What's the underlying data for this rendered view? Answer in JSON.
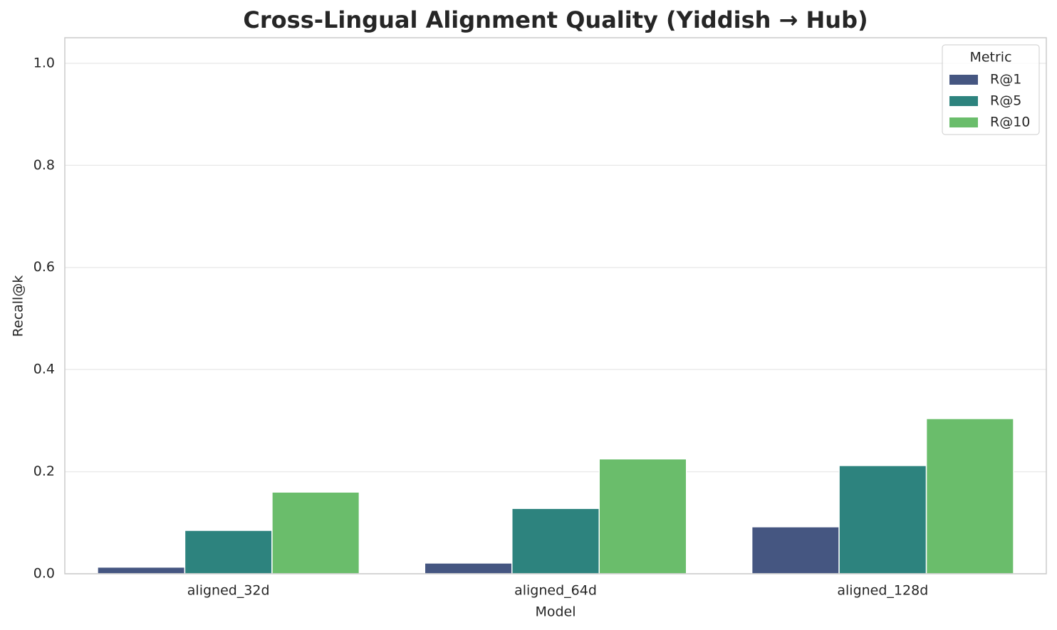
{
  "chart_data": {
    "type": "bar",
    "title": "Cross-Lingual Alignment Quality (Yiddish → Hub)",
    "x_label": "Model",
    "y_label": "Recall@k",
    "categories": [
      "aligned_32d",
      "aligned_64d",
      "aligned_128d"
    ],
    "series": [
      {
        "name": "R@1",
        "color": "#455681",
        "values": [
          0.013,
          0.021,
          0.092
        ]
      },
      {
        "name": "R@5",
        "color": "#2d837e",
        "values": [
          0.085,
          0.128,
          0.212
        ]
      },
      {
        "name": "R@10",
        "color": "#6abd6b",
        "values": [
          0.16,
          0.225,
          0.304
        ]
      }
    ],
    "ylim": [
      0,
      1.05
    ],
    "yticks": [
      {
        "value": 0,
        "label": "0.0"
      },
      0.2,
      0.4,
      0.6,
      0.8,
      {
        "value": 1,
        "label": "1.0"
      }
    ],
    "grid": true,
    "legend_title": "Metric",
    "legend_position": "upper right"
  }
}
